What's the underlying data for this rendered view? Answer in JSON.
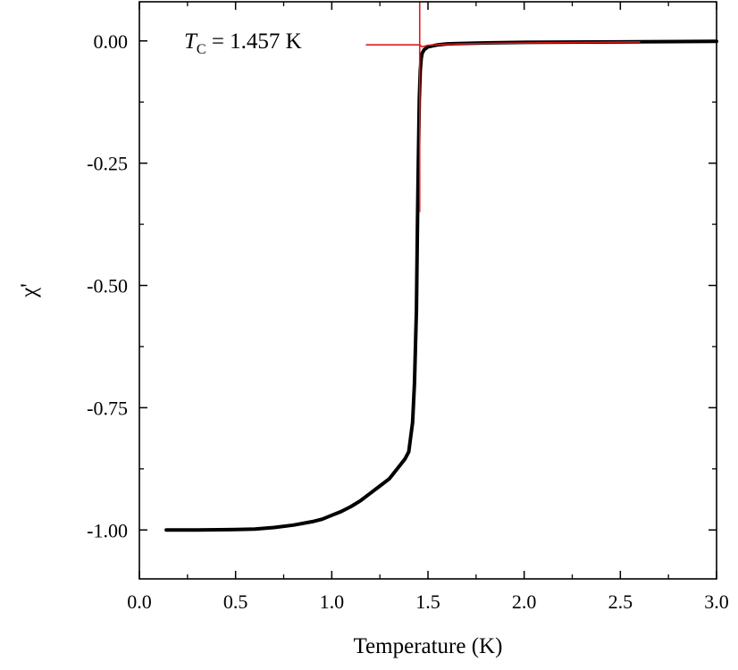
{
  "chart_data": {
    "type": "line",
    "title": "",
    "xlabel": "Temperature (K)",
    "ylabel": "χ'",
    "xlim": [
      0.0,
      3.0
    ],
    "ylim": [
      -1.1,
      0.08
    ],
    "x_ticks": [
      0.0,
      0.5,
      1.0,
      1.5,
      2.0,
      2.5,
      3.0
    ],
    "x_tick_labels": [
      "0.0",
      "0.5",
      "1.0",
      "1.5",
      "2.0",
      "2.5",
      "3.0"
    ],
    "y_ticks": [
      0.0,
      -0.25,
      -0.5,
      -0.75,
      -1.0
    ],
    "y_tick_labels": [
      "0.00",
      "-0.25",
      "-0.50",
      "-0.75",
      "-1.00"
    ],
    "grid": false,
    "legend": "none",
    "annotation": {
      "symbol": "T",
      "subscript": "C",
      "rest": " = 1.457 K",
      "value_K": 1.457
    },
    "series": [
      {
        "color": "#000000",
        "x": [
          0.14,
          0.3,
          0.5,
          0.6,
          0.7,
          0.8,
          0.9,
          0.95,
          1.0,
          1.05,
          1.1,
          1.15,
          1.2,
          1.25,
          1.3,
          1.35,
          1.38,
          1.4,
          1.42,
          1.43,
          1.44,
          1.445,
          1.45,
          1.455,
          1.46,
          1.465,
          1.47,
          1.48,
          1.5,
          1.55,
          1.6,
          1.8,
          2.0,
          2.5,
          3.0
        ],
        "y": [
          -1.0,
          -1.0,
          -0.999,
          -0.998,
          -0.995,
          -0.99,
          -0.983,
          -0.978,
          -0.97,
          -0.962,
          -0.952,
          -0.94,
          -0.925,
          -0.91,
          -0.895,
          -0.87,
          -0.855,
          -0.84,
          -0.78,
          -0.7,
          -0.55,
          -0.38,
          -0.25,
          -0.12,
          -0.06,
          -0.035,
          -0.025,
          -0.018,
          -0.012,
          -0.008,
          -0.006,
          -0.004,
          -0.003,
          -0.002,
          -0.001
        ]
      },
      {
        "color": "#e0191d",
        "x": [
          1.18,
          1.3,
          1.4,
          1.457,
          1.47,
          1.5,
          1.6,
          1.8,
          2.0,
          2.3,
          2.6
        ],
        "y": [
          -0.008,
          -0.008,
          -0.008,
          -0.008,
          -0.012,
          -0.009,
          -0.007,
          -0.005,
          -0.004,
          -0.003,
          -0.002
        ]
      }
    ],
    "reference_lines": [
      {
        "orientation": "vertical",
        "x": 1.457,
        "y_range": [
          -0.35,
          0.08
        ],
        "color": "#e0191d"
      }
    ]
  }
}
